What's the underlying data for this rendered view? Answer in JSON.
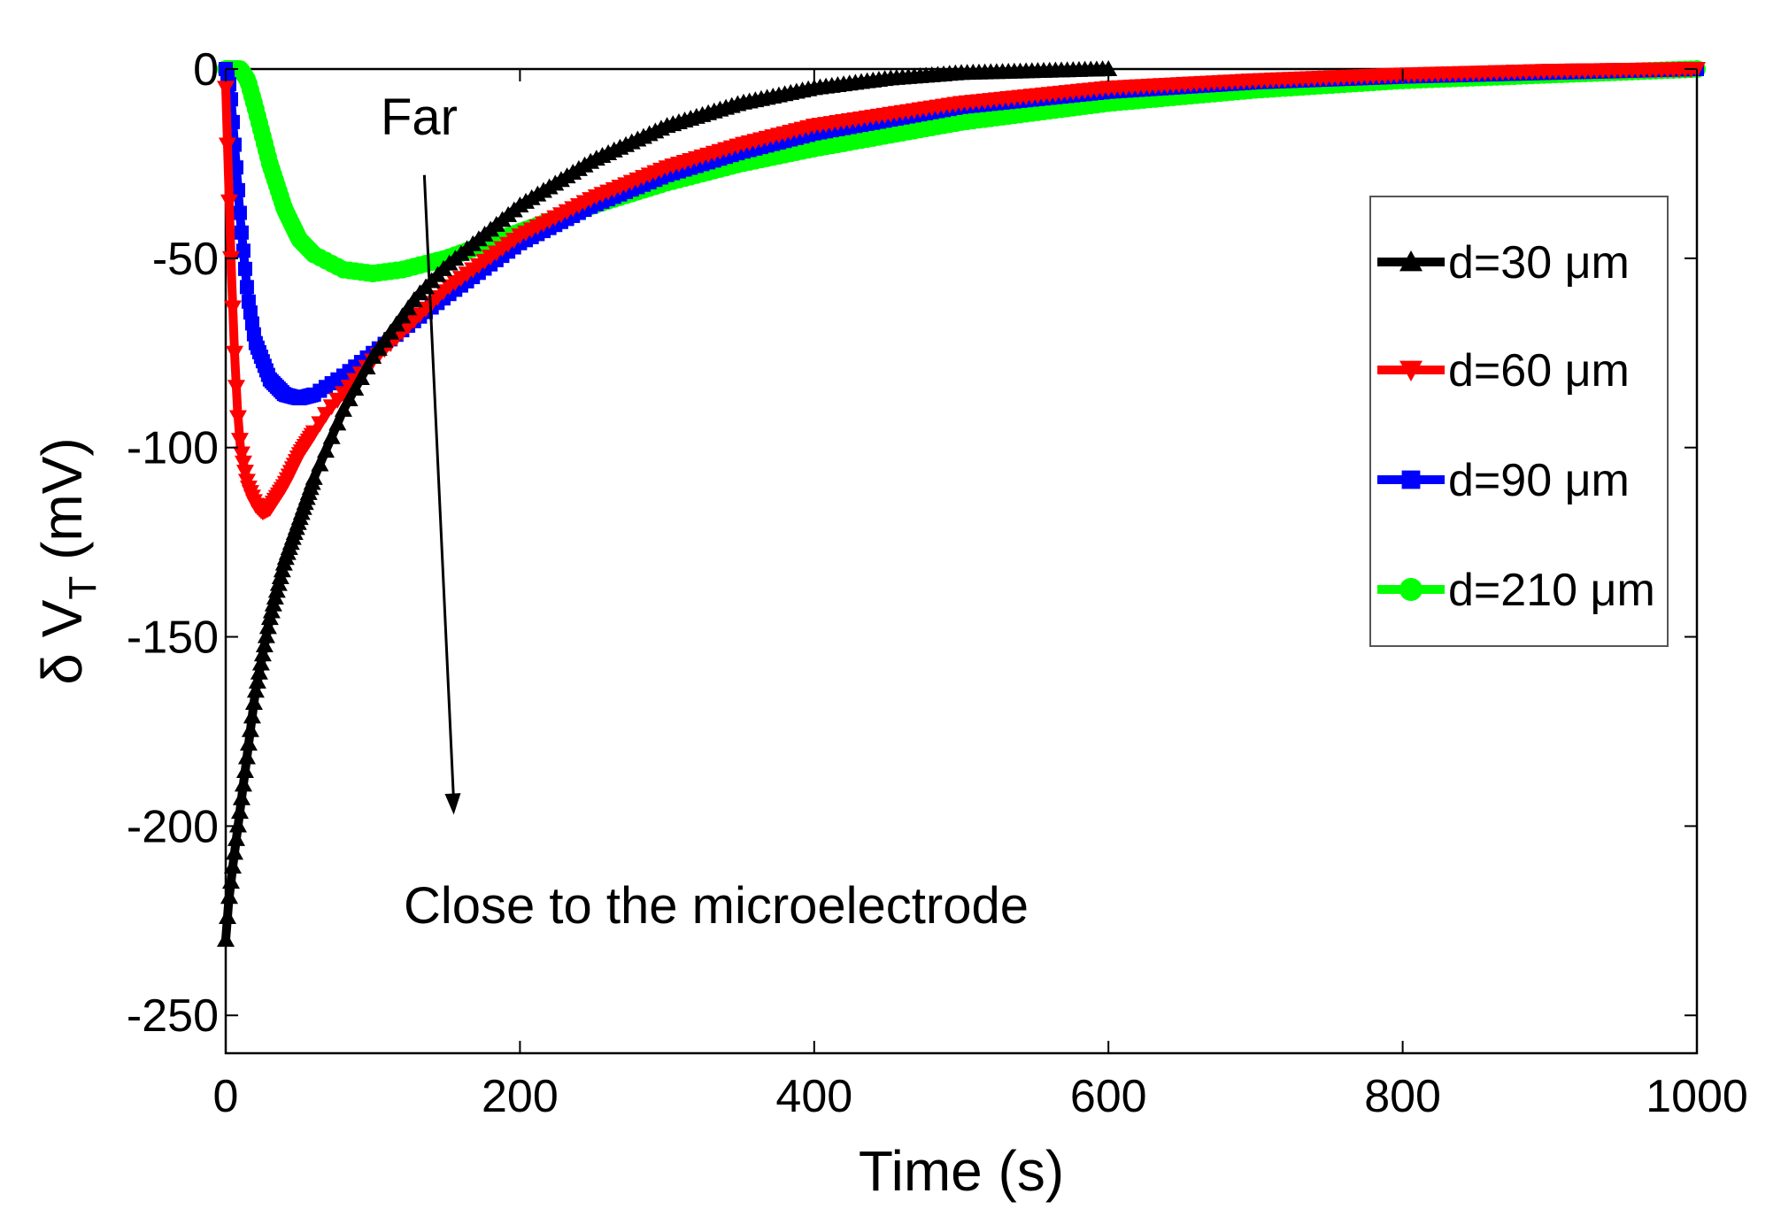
{
  "chart_data": {
    "type": "line",
    "title": "",
    "xlabel": "Time (s)",
    "ylabel_prefix": "δ V",
    "ylabel_sub": "T",
    "ylabel_suffix": " (mV)",
    "xlim": [
      0,
      1000
    ],
    "ylim": [
      -260,
      0
    ],
    "xticks": [
      0,
      200,
      400,
      600,
      800,
      1000
    ],
    "xtick_labels": [
      "0",
      "200",
      "400",
      "600",
      "800",
      "1000"
    ],
    "yticks": [
      0,
      -50,
      -100,
      -150,
      -200,
      -250
    ],
    "ytick_labels": [
      "0",
      "-50",
      "-100",
      "-150",
      "-200",
      "-250"
    ],
    "grid": false,
    "legend_position": "upper-right",
    "series": [
      {
        "name": "d=30 μm",
        "color": "#000000",
        "marker": "triangle-up",
        "x": [
          0,
          2,
          5,
          10,
          15,
          20,
          30,
          40,
          60,
          80,
          100,
          130,
          150,
          200,
          250,
          300,
          350,
          400,
          450,
          500,
          550,
          600
        ],
        "y": [
          -230,
          -220,
          -210,
          -195,
          -180,
          -165,
          -145,
          -130,
          -108,
          -90,
          -76,
          -60,
          -52,
          -36,
          -24,
          -15,
          -9,
          -5,
          -2.5,
          -1,
          -0.5,
          0
        ]
      },
      {
        "name": "d=60 μm",
        "color": "#ff0000",
        "marker": "triangle-down",
        "x": [
          0,
          2,
          4,
          6,
          8,
          10,
          15,
          20,
          25,
          30,
          40,
          50,
          70,
          100,
          150,
          200,
          250,
          300,
          350,
          400,
          500,
          600,
          700,
          800,
          900,
          1000
        ],
        "y": [
          -5,
          -30,
          -55,
          -75,
          -90,
          -100,
          -110,
          -115,
          -117,
          -116,
          -110,
          -102,
          -90,
          -77,
          -58,
          -44,
          -34,
          -26,
          -20,
          -15,
          -9,
          -5,
          -3,
          -1.5,
          -0.5,
          0
        ]
      },
      {
        "name": "d=90 μm",
        "color": "#0000ff",
        "marker": "square",
        "x": [
          0,
          3,
          6,
          10,
          15,
          20,
          30,
          40,
          50,
          60,
          80,
          100,
          130,
          150,
          200,
          250,
          300,
          350,
          400,
          500,
          600,
          700,
          800,
          900,
          1000
        ],
        "y": [
          0,
          -5,
          -20,
          -40,
          -60,
          -72,
          -82,
          -86,
          -87,
          -86,
          -81,
          -75,
          -66,
          -60,
          -46,
          -36,
          -28,
          -22,
          -17,
          -10,
          -6,
          -3.5,
          -2,
          -1,
          0
        ]
      },
      {
        "name": "d=210 μm",
        "color": "#00ff00",
        "marker": "circle",
        "x": [
          0,
          5,
          10,
          15,
          20,
          30,
          40,
          50,
          60,
          80,
          100,
          120,
          150,
          200,
          250,
          300,
          350,
          400,
          500,
          600,
          700,
          800,
          900,
          1000
        ],
        "y": [
          0,
          0,
          0,
          -3,
          -10,
          -25,
          -37,
          -45,
          -49,
          -53,
          -54,
          -53,
          -50,
          -43,
          -36,
          -30,
          -25,
          -21,
          -14,
          -9,
          -5.5,
          -3,
          -1.5,
          0
        ]
      }
    ],
    "annotations": [
      {
        "text": "Far",
        "x": 132,
        "y": -12
      },
      {
        "text": "Close to the microelectrode",
        "x": 120,
        "y": -218
      }
    ],
    "arrow": {
      "from": [
        135,
        -28
      ],
      "to": [
        155,
        -197
      ]
    }
  }
}
